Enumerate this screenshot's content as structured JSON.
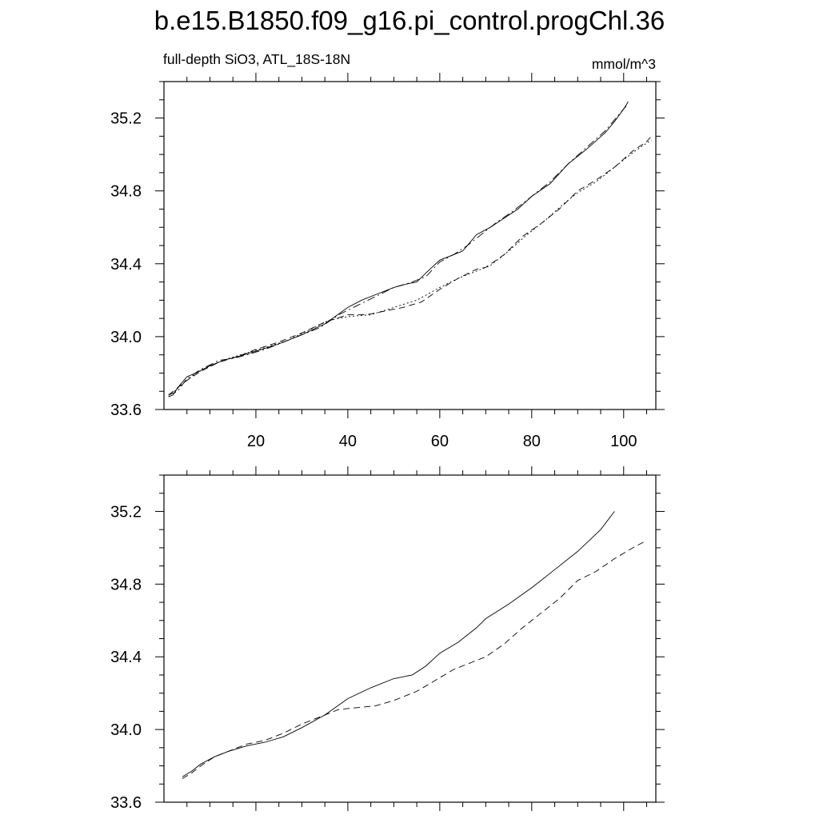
{
  "title": "b.e15.B1850.f09_g16.pi_control.progChl.36",
  "left_subtitle": "full-depth SiO3, ATL_18S-18N",
  "right_subtitle": "mmol/m^3",
  "chart_data": [
    {
      "type": "line",
      "panel": "top",
      "xlim": [
        0,
        107
      ],
      "ylim": [
        33.6,
        35.4
      ],
      "ytick_labels": [
        "33.6",
        "34.0",
        "34.4",
        "34.8",
        "35.2"
      ],
      "xtick_labels": [
        "20",
        "40",
        "60",
        "80",
        "100"
      ],
      "series": [
        {
          "style": "solid",
          "points": [
            [
              1,
              33.67
            ],
            [
              2,
              33.68
            ],
            [
              3,
              33.72
            ],
            [
              4,
              33.75
            ],
            [
              5,
              33.78
            ],
            [
              7,
              33.8
            ],
            [
              10,
              33.84
            ],
            [
              13,
              33.87
            ],
            [
              16,
              33.89
            ],
            [
              20,
              33.92
            ],
            [
              25,
              33.96
            ],
            [
              30,
              34.01
            ],
            [
              35,
              34.07
            ],
            [
              40,
              34.16
            ],
            [
              43,
              34.2
            ],
            [
              46,
              34.23
            ],
            [
              50,
              34.27
            ],
            [
              53,
              34.29
            ],
            [
              55,
              34.3
            ],
            [
              57,
              34.35
            ],
            [
              60,
              34.42
            ],
            [
              63,
              34.45
            ],
            [
              65,
              34.47
            ],
            [
              68,
              34.56
            ],
            [
              71,
              34.6
            ],
            [
              74,
              34.65
            ],
            [
              77,
              34.7
            ],
            [
              80,
              34.77
            ],
            [
              84,
              34.84
            ],
            [
              88,
              34.95
            ],
            [
              92,
              35.03
            ],
            [
              96,
              35.12
            ],
            [
              98,
              35.18
            ],
            [
              100,
              35.25
            ],
            [
              101,
              35.29
            ]
          ]
        },
        {
          "style": "dash-dot",
          "points": [
            [
              1,
              33.68
            ],
            [
              3,
              33.7
            ],
            [
              5,
              33.77
            ],
            [
              8,
              33.82
            ],
            [
              12,
              33.87
            ],
            [
              15,
              33.88
            ],
            [
              18,
              33.9
            ],
            [
              22,
              33.93
            ],
            [
              26,
              33.97
            ],
            [
              30,
              34.01
            ],
            [
              34,
              34.05
            ],
            [
              38,
              34.12
            ],
            [
              42,
              34.17
            ],
            [
              46,
              34.22
            ],
            [
              50,
              34.27
            ],
            [
              54,
              34.3
            ],
            [
              57,
              34.33
            ],
            [
              60,
              34.41
            ],
            [
              63,
              34.45
            ],
            [
              66,
              34.5
            ],
            [
              69,
              34.56
            ],
            [
              72,
              34.62
            ],
            [
              76,
              34.69
            ],
            [
              80,
              34.77
            ],
            [
              84,
              34.85
            ],
            [
              88,
              34.95
            ],
            [
              92,
              35.04
            ],
            [
              96,
              35.13
            ],
            [
              100,
              35.25
            ],
            [
              101,
              35.28
            ]
          ]
        },
        {
          "style": "dashed",
          "points": [
            [
              1,
              33.68
            ],
            [
              3,
              33.72
            ],
            [
              5,
              33.76
            ],
            [
              8,
              33.81
            ],
            [
              12,
              33.86
            ],
            [
              16,
              33.89
            ],
            [
              20,
              33.93
            ],
            [
              25,
              33.97
            ],
            [
              30,
              34.02
            ],
            [
              35,
              34.08
            ],
            [
              40,
              34.12
            ],
            [
              44,
              34.12
            ],
            [
              48,
              34.14
            ],
            [
              52,
              34.16
            ],
            [
              56,
              34.19
            ],
            [
              60,
              34.26
            ],
            [
              64,
              34.32
            ],
            [
              68,
              34.37
            ],
            [
              70,
              34.38
            ],
            [
              74,
              34.45
            ],
            [
              78,
              34.55
            ],
            [
              82,
              34.62
            ],
            [
              86,
              34.7
            ],
            [
              90,
              34.8
            ],
            [
              94,
              34.86
            ],
            [
              98,
              34.93
            ],
            [
              102,
              35.02
            ],
            [
              105,
              35.07
            ],
            [
              106,
              35.1
            ]
          ]
        },
        {
          "style": "dotted",
          "points": [
            [
              1,
              33.67
            ],
            [
              4,
              33.74
            ],
            [
              7,
              33.8
            ],
            [
              11,
              33.85
            ],
            [
              14,
              33.88
            ],
            [
              18,
              33.91
            ],
            [
              22,
              33.94
            ],
            [
              27,
              33.98
            ],
            [
              31,
              34.03
            ],
            [
              36,
              34.09
            ],
            [
              40,
              34.11
            ],
            [
              45,
              34.12
            ],
            [
              50,
              34.16
            ],
            [
              55,
              34.2
            ],
            [
              60,
              34.27
            ],
            [
              64,
              34.32
            ],
            [
              68,
              34.36
            ],
            [
              71,
              34.39
            ],
            [
              75,
              34.47
            ],
            [
              79,
              34.56
            ],
            [
              83,
              34.64
            ],
            [
              87,
              34.73
            ],
            [
              90,
              34.79
            ],
            [
              94,
              34.85
            ],
            [
              98,
              34.93
            ],
            [
              102,
              35.01
            ],
            [
              106,
              35.08
            ]
          ]
        }
      ]
    },
    {
      "type": "line",
      "panel": "bottom",
      "xlim": [
        0,
        107
      ],
      "ylim": [
        33.6,
        35.4
      ],
      "ytick_labels": [
        "33.6",
        "34.0",
        "34.4",
        "34.8",
        "35.2"
      ],
      "series": [
        {
          "style": "solid",
          "points": [
            [
              4,
              33.74
            ],
            [
              6,
              33.77
            ],
            [
              8,
              33.81
            ],
            [
              11,
              33.85
            ],
            [
              14,
              33.88
            ],
            [
              18,
              33.91
            ],
            [
              22,
              33.93
            ],
            [
              26,
              33.96
            ],
            [
              30,
              34.01
            ],
            [
              35,
              34.08
            ],
            [
              40,
              34.17
            ],
            [
              45,
              34.23
            ],
            [
              50,
              34.28
            ],
            [
              54,
              34.3
            ],
            [
              57,
              34.35
            ],
            [
              60,
              34.42
            ],
            [
              64,
              34.48
            ],
            [
              68,
              34.56
            ],
            [
              70,
              34.61
            ],
            [
              75,
              34.69
            ],
            [
              80,
              34.78
            ],
            [
              85,
              34.88
            ],
            [
              90,
              34.98
            ],
            [
              95,
              35.1
            ],
            [
              98,
              35.2
            ]
          ]
        },
        {
          "style": "dashed",
          "points": [
            [
              4,
              33.73
            ],
            [
              6,
              33.76
            ],
            [
              8,
              33.8
            ],
            [
              11,
              33.85
            ],
            [
              14,
              33.88
            ],
            [
              18,
              33.92
            ],
            [
              22,
              33.94
            ],
            [
              26,
              33.98
            ],
            [
              30,
              34.03
            ],
            [
              35,
              34.08
            ],
            [
              38,
              34.11
            ],
            [
              42,
              34.12
            ],
            [
              46,
              34.13
            ],
            [
              50,
              34.16
            ],
            [
              55,
              34.21
            ],
            [
              59,
              34.27
            ],
            [
              63,
              34.33
            ],
            [
              67,
              34.37
            ],
            [
              70,
              34.4
            ],
            [
              74,
              34.47
            ],
            [
              78,
              34.56
            ],
            [
              82,
              34.64
            ],
            [
              86,
              34.72
            ],
            [
              90,
              34.82
            ],
            [
              94,
              34.87
            ],
            [
              98,
              34.94
            ],
            [
              102,
              35.0
            ],
            [
              105,
              35.04
            ]
          ]
        }
      ]
    }
  ]
}
